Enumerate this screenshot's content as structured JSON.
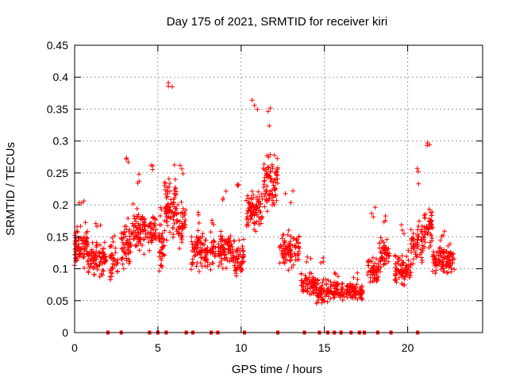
{
  "chart_data": {
    "type": "scatter",
    "title": "Day 175 of 2021, SRMTID for receiver kiri",
    "xlabel": "GPS time / hours",
    "ylabel": "SRMTID / TECUs",
    "xlim": [
      0,
      24.5
    ],
    "ylim": [
      0,
      0.45
    ],
    "xticks": [
      0,
      5,
      10,
      15,
      20
    ],
    "yticks": [
      0,
      0.05,
      0.1,
      0.15,
      0.2,
      0.25,
      0.3,
      0.35,
      0.4,
      0.45
    ],
    "xtick_labels": [
      "0",
      "5",
      "10",
      "15",
      "20"
    ],
    "ytick_labels": [
      "0",
      "0.05",
      "0.1",
      "0.15",
      "0.2",
      "0.25",
      "0.3",
      "0.35",
      "0.4",
      "0.45"
    ],
    "grid": true,
    "marker": "+",
    "color": "#ff0000",
    "series": [
      {
        "name": "SRMTID",
        "bursts": [
          {
            "x0": 0.0,
            "x1": 0.8,
            "base": 0.135,
            "spread": 0.045,
            "n": 90,
            "peak": 0.22
          },
          {
            "x0": 0.8,
            "x1": 1.9,
            "base": 0.115,
            "spread": 0.035,
            "n": 90,
            "peak": 0.175
          },
          {
            "x0": 2.1,
            "x1": 2.6,
            "base": 0.11,
            "spread": 0.04,
            "n": 35,
            "peak": 0.16
          },
          {
            "x0": 2.8,
            "x1": 3.4,
            "base": 0.14,
            "spread": 0.05,
            "n": 55,
            "peak": 0.285
          },
          {
            "x0": 3.4,
            "x1": 4.3,
            "base": 0.16,
            "spread": 0.05,
            "n": 75,
            "peak": 0.26
          },
          {
            "x0": 4.4,
            "x1": 4.9,
            "base": 0.16,
            "spread": 0.045,
            "n": 40,
            "peak": 0.28
          },
          {
            "x0": 5.0,
            "x1": 5.4,
            "base": 0.13,
            "spread": 0.05,
            "n": 35,
            "peak": 0.2
          },
          {
            "x0": 5.4,
            "x1": 6.1,
            "base": 0.2,
            "spread": 0.07,
            "n": 80,
            "peak": 0.41
          },
          {
            "x0": 6.1,
            "x1": 6.7,
            "base": 0.17,
            "spread": 0.05,
            "n": 45,
            "peak": 0.275
          },
          {
            "x0": 7.0,
            "x1": 8.0,
            "base": 0.13,
            "spread": 0.04,
            "n": 85,
            "peak": 0.19
          },
          {
            "x0": 8.1,
            "x1": 8.5,
            "base": 0.13,
            "spread": 0.04,
            "n": 30,
            "peak": 0.185
          },
          {
            "x0": 8.6,
            "x1": 9.5,
            "base": 0.13,
            "spread": 0.04,
            "n": 80,
            "peak": 0.23
          },
          {
            "x0": 9.5,
            "x1": 10.2,
            "base": 0.115,
            "spread": 0.04,
            "n": 55,
            "peak": 0.25
          },
          {
            "x0": 10.3,
            "x1": 11.3,
            "base": 0.19,
            "spread": 0.05,
            "n": 90,
            "peak": 0.37
          },
          {
            "x0": 11.3,
            "x1": 12.2,
            "base": 0.235,
            "spread": 0.06,
            "n": 85,
            "peak": 0.355
          },
          {
            "x0": 12.3,
            "x1": 13.5,
            "base": 0.13,
            "spread": 0.04,
            "n": 90,
            "peak": 0.225
          },
          {
            "x0": 13.6,
            "x1": 14.5,
            "base": 0.075,
            "spread": 0.025,
            "n": 70,
            "peak": 0.12
          },
          {
            "x0": 14.5,
            "x1": 15.3,
            "base": 0.065,
            "spread": 0.025,
            "n": 60,
            "peak": 0.12
          },
          {
            "x0": 15.3,
            "x1": 16.2,
            "base": 0.065,
            "spread": 0.02,
            "n": 55,
            "peak": 0.1
          },
          {
            "x0": 16.3,
            "x1": 17.3,
            "base": 0.065,
            "spread": 0.02,
            "n": 75,
            "peak": 0.095
          },
          {
            "x0": 17.6,
            "x1": 18.3,
            "base": 0.1,
            "spread": 0.035,
            "n": 55,
            "peak": 0.2
          },
          {
            "x0": 18.3,
            "x1": 18.9,
            "base": 0.12,
            "spread": 0.04,
            "n": 45,
            "peak": 0.19
          },
          {
            "x0": 19.2,
            "x1": 20.2,
            "base": 0.1,
            "spread": 0.035,
            "n": 75,
            "peak": 0.175
          },
          {
            "x0": 20.2,
            "x1": 20.9,
            "base": 0.14,
            "spread": 0.05,
            "n": 55,
            "peak": 0.26
          },
          {
            "x0": 20.9,
            "x1": 21.5,
            "base": 0.16,
            "spread": 0.05,
            "n": 50,
            "peak": 0.315
          },
          {
            "x0": 21.5,
            "x1": 22.8,
            "base": 0.115,
            "spread": 0.035,
            "n": 100,
            "peak": 0.17
          }
        ],
        "baseline_markers_x": [
          2.0,
          2.8,
          4.5,
          5.0,
          5.5,
          6.7,
          7.1,
          8.2,
          8.6,
          10.2,
          12.2,
          13.8,
          14.7,
          15.2,
          15.6,
          16.0,
          16.6,
          17.1,
          17.4,
          18.2,
          19.0,
          20.6
        ]
      }
    ],
    "legend": "none"
  }
}
